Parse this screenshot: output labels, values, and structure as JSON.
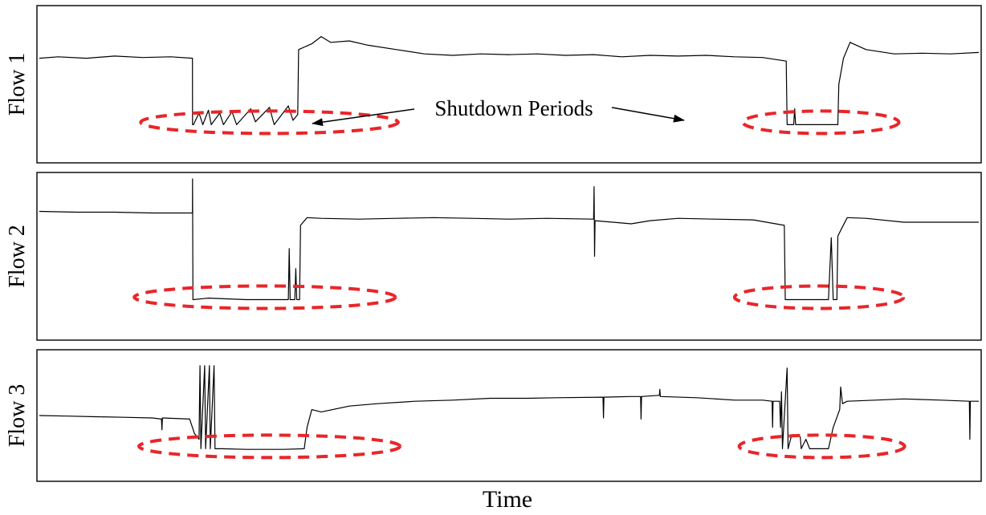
{
  "chart_data": {
    "type": "line",
    "xlabel": "Time",
    "annotation": "Shutdown Periods",
    "colors": {
      "trace": "#000000",
      "shutdown_ellipse": "#e8262a"
    },
    "x_range": [
      0,
      100
    ],
    "y_range": [
      0,
      1
    ],
    "panels": [
      {
        "name": "Flow 1",
        "ylabel": "Flow 1",
        "points": [
          [
            0,
            0.68
          ],
          [
            2,
            0.69
          ],
          [
            5,
            0.68
          ],
          [
            8,
            0.695
          ],
          [
            11,
            0.685
          ],
          [
            14,
            0.69
          ],
          [
            16.3,
            0.68
          ],
          [
            16.31,
            0.22
          ],
          [
            16.4,
            0.22
          ],
          [
            17,
            0.3
          ],
          [
            17.4,
            0.22
          ],
          [
            18,
            0.32
          ],
          [
            18.3,
            0.22
          ],
          [
            19.2,
            0.3
          ],
          [
            19.6,
            0.22
          ],
          [
            20.5,
            0.31
          ],
          [
            21,
            0.22
          ],
          [
            22.5,
            0.33
          ],
          [
            23,
            0.24
          ],
          [
            24.5,
            0.34
          ],
          [
            25,
            0.22
          ],
          [
            26.5,
            0.35
          ],
          [
            27,
            0.25
          ],
          [
            27.5,
            0.29
          ],
          [
            27.6,
            0.74
          ],
          [
            29,
            0.78
          ],
          [
            30,
            0.83
          ],
          [
            31,
            0.79
          ],
          [
            33,
            0.8
          ],
          [
            35,
            0.77
          ],
          [
            38,
            0.74
          ],
          [
            41,
            0.71
          ],
          [
            44,
            0.7
          ],
          [
            47,
            0.71
          ],
          [
            50,
            0.705
          ],
          [
            53,
            0.71
          ],
          [
            56,
            0.7
          ],
          [
            59,
            0.705
          ],
          [
            62,
            0.69
          ],
          [
            65,
            0.7
          ],
          [
            68,
            0.695
          ],
          [
            71,
            0.7
          ],
          [
            74,
            0.69
          ],
          [
            77,
            0.685
          ],
          [
            79.5,
            0.66
          ],
          [
            79.6,
            0.22
          ],
          [
            80.3,
            0.22
          ],
          [
            80.4,
            0.33
          ],
          [
            80.5,
            0.22
          ],
          [
            85,
            0.22
          ],
          [
            85.1,
            0.5
          ],
          [
            85.6,
            0.68
          ],
          [
            86.3,
            0.79
          ],
          [
            88,
            0.74
          ],
          [
            91,
            0.71
          ],
          [
            94,
            0.715
          ],
          [
            97,
            0.71
          ],
          [
            100,
            0.72
          ]
        ],
        "shutdowns": [
          {
            "x": 24.5,
            "half_width": 13.7
          },
          {
            "x": 83.2,
            "half_width": 8.3
          }
        ]
      },
      {
        "name": "Flow 2",
        "ylabel": "Flow 2",
        "points": [
          [
            0,
            0.79
          ],
          [
            4,
            0.785
          ],
          [
            8,
            0.785
          ],
          [
            12,
            0.78
          ],
          [
            16.3,
            0.78
          ],
          [
            16.31,
            1.0
          ],
          [
            16.35,
            0.22
          ],
          [
            16.4,
            0.22
          ],
          [
            18,
            0.23
          ],
          [
            22,
            0.22
          ],
          [
            26.5,
            0.22
          ],
          [
            26.6,
            0.55
          ],
          [
            26.7,
            0.22
          ],
          [
            27.2,
            0.22
          ],
          [
            27.3,
            0.42
          ],
          [
            27.4,
            0.22
          ],
          [
            27.7,
            0.22
          ],
          [
            27.8,
            0.7
          ],
          [
            28.5,
            0.75
          ],
          [
            30,
            0.745
          ],
          [
            34,
            0.74
          ],
          [
            38,
            0.745
          ],
          [
            42,
            0.75
          ],
          [
            46,
            0.745
          ],
          [
            50,
            0.74
          ],
          [
            54,
            0.745
          ],
          [
            59,
            0.74
          ],
          [
            59.05,
            0.95
          ],
          [
            59.1,
            0.5
          ],
          [
            59.15,
            0.73
          ],
          [
            63,
            0.71
          ],
          [
            65,
            0.73
          ],
          [
            68,
            0.745
          ],
          [
            72,
            0.74
          ],
          [
            76,
            0.735
          ],
          [
            79.3,
            0.7
          ],
          [
            79.4,
            0.22
          ],
          [
            82,
            0.22
          ],
          [
            84,
            0.22
          ],
          [
            84.3,
            0.62
          ],
          [
            84.5,
            0.22
          ],
          [
            84.9,
            0.22
          ],
          [
            85.0,
            0.63
          ],
          [
            85.4,
            0.68
          ],
          [
            86,
            0.75
          ],
          [
            88,
            0.745
          ],
          [
            92,
            0.72
          ],
          [
            96,
            0.72
          ],
          [
            100,
            0.72
          ]
        ],
        "shutdowns": [
          {
            "x": 24.0,
            "half_width": 13.9
          },
          {
            "x": 83.0,
            "half_width": 9.0
          }
        ]
      },
      {
        "name": "Flow 3",
        "ylabel": "Flow 3",
        "points": [
          [
            0,
            0.5
          ],
          [
            3,
            0.495
          ],
          [
            6,
            0.49
          ],
          [
            9,
            0.485
          ],
          [
            12,
            0.48
          ],
          [
            13,
            0.47
          ],
          [
            13.05,
            0.38
          ],
          [
            13.1,
            0.48
          ],
          [
            16,
            0.47
          ],
          [
            16.5,
            0.35
          ],
          [
            17,
            0.3
          ],
          [
            17.1,
            0.92
          ],
          [
            17.2,
            0.22
          ],
          [
            17.6,
            0.92
          ],
          [
            17.7,
            0.22
          ],
          [
            18.1,
            0.92
          ],
          [
            18.2,
            0.22
          ],
          [
            18.6,
            0.92
          ],
          [
            18.7,
            0.22
          ],
          [
            19.5,
            0.22
          ],
          [
            22,
            0.215
          ],
          [
            26,
            0.215
          ],
          [
            28.2,
            0.22
          ],
          [
            28.5,
            0.4
          ],
          [
            29,
            0.55
          ],
          [
            30,
            0.53
          ],
          [
            33,
            0.58
          ],
          [
            36,
            0.6
          ],
          [
            40,
            0.62
          ],
          [
            44,
            0.63
          ],
          [
            48,
            0.645
          ],
          [
            52,
            0.645
          ],
          [
            55,
            0.65
          ],
          [
            60,
            0.655
          ],
          [
            60.05,
            0.48
          ],
          [
            60.1,
            0.655
          ],
          [
            63,
            0.66
          ],
          [
            64,
            0.66
          ],
          [
            64.05,
            0.47
          ],
          [
            64.1,
            0.66
          ],
          [
            66,
            0.67
          ],
          [
            66.05,
            0.72
          ],
          [
            66.1,
            0.66
          ],
          [
            70,
            0.65
          ],
          [
            74,
            0.63
          ],
          [
            77,
            0.63
          ],
          [
            78,
            0.62
          ],
          [
            78.05,
            0.4
          ],
          [
            78.1,
            0.62
          ],
          [
            78.8,
            0.62
          ],
          [
            78.9,
            0.4
          ],
          [
            79,
            0.7
          ],
          [
            79.1,
            0.22
          ],
          [
            79.6,
            0.9
          ],
          [
            79.7,
            0.22
          ],
          [
            80.1,
            0.34
          ],
          [
            81,
            0.32
          ],
          [
            81.1,
            0.22
          ],
          [
            81.6,
            0.3
          ],
          [
            82,
            0.22
          ],
          [
            84,
            0.22
          ],
          [
            84.5,
            0.4
          ],
          [
            85.2,
            0.55
          ],
          [
            85.3,
            0.74
          ],
          [
            85.5,
            0.6
          ],
          [
            86,
            0.62
          ],
          [
            89,
            0.63
          ],
          [
            92,
            0.64
          ],
          [
            96,
            0.63
          ],
          [
            99,
            0.62
          ],
          [
            99.05,
            0.3
          ],
          [
            99.1,
            0.62
          ],
          [
            100,
            0.62
          ]
        ],
        "shutdowns": [
          {
            "x": 24.5,
            "half_width": 13.9
          },
          {
            "x": 83.3,
            "half_width": 8.8
          }
        ]
      }
    ]
  }
}
